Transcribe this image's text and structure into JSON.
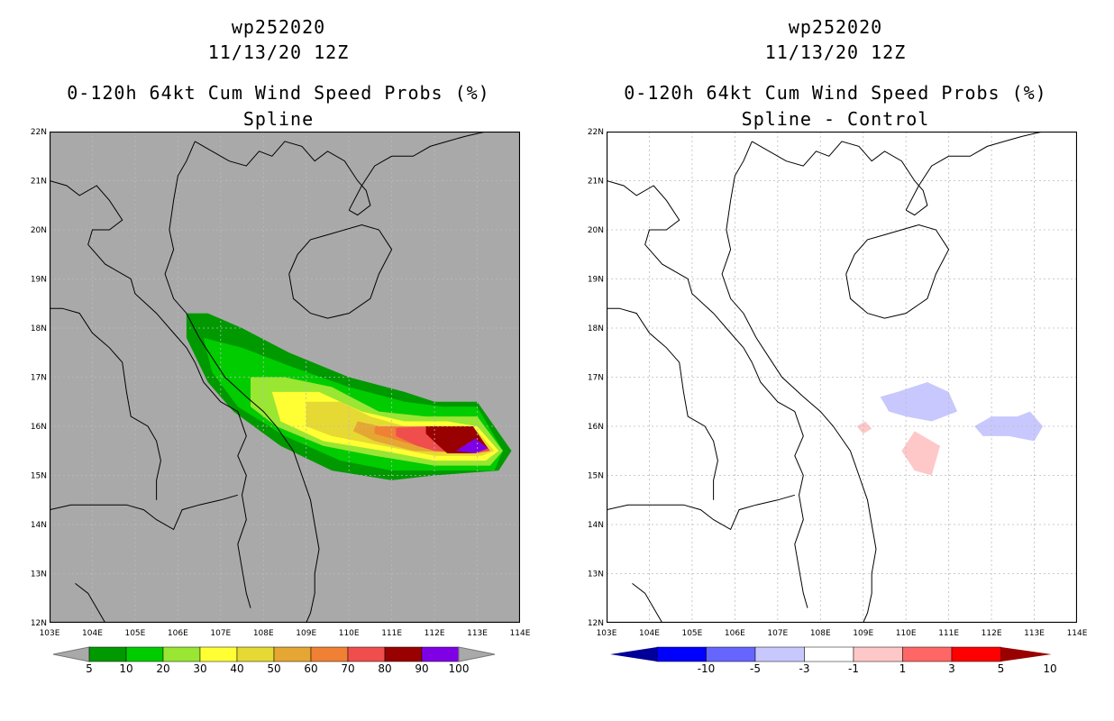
{
  "left_panel": {
    "title_line1": "wp252020",
    "title_line2": "11/13/20 12Z",
    "title_line3": "0-120h 64kt Cum Wind Speed Probs (%)",
    "title_line4": "Spline",
    "background_color": "#a9a9a9"
  },
  "right_panel": {
    "title_line1": "wp252020",
    "title_line2": "11/13/20 12Z",
    "title_line3": "0-120h 64kt Cum Wind Speed Probs (%)",
    "title_line4": "Spline - Control",
    "background_color": "#ffffff"
  },
  "map": {
    "lon_labels": [
      "103E",
      "104E",
      "105E",
      "106E",
      "107E",
      "108E",
      "109E",
      "110E",
      "111E",
      "112E",
      "113E",
      "114E"
    ],
    "lat_labels": [
      "22N",
      "21N",
      "20N",
      "19N",
      "18N",
      "17N",
      "16N",
      "15N",
      "14N",
      "13N",
      "12N"
    ]
  },
  "left_colorbar": {
    "labels": [
      "5",
      "10",
      "20",
      "30",
      "40",
      "50",
      "60",
      "70",
      "80",
      "90",
      "100"
    ],
    "colors": [
      "#009900",
      "#00cc00",
      "#99e633",
      "#ffff33",
      "#e6d933",
      "#e6a633",
      "#f08033",
      "#f04d4d",
      "#990000",
      "#8000e6"
    ],
    "end_color": "#a9a9a9"
  },
  "right_colorbar": {
    "labels": [
      "-10",
      "-5",
      "-3",
      "-1",
      "1",
      "3",
      "5",
      "10"
    ],
    "colors": [
      "#000099",
      "#0000ff",
      "#6666ff",
      "#c8c8ff",
      "#ffffff",
      "#ffc8c8",
      "#ff6666",
      "#ff0000",
      "#990000"
    ],
    "min_color": "#000099",
    "max_color": "#990000"
  }
}
